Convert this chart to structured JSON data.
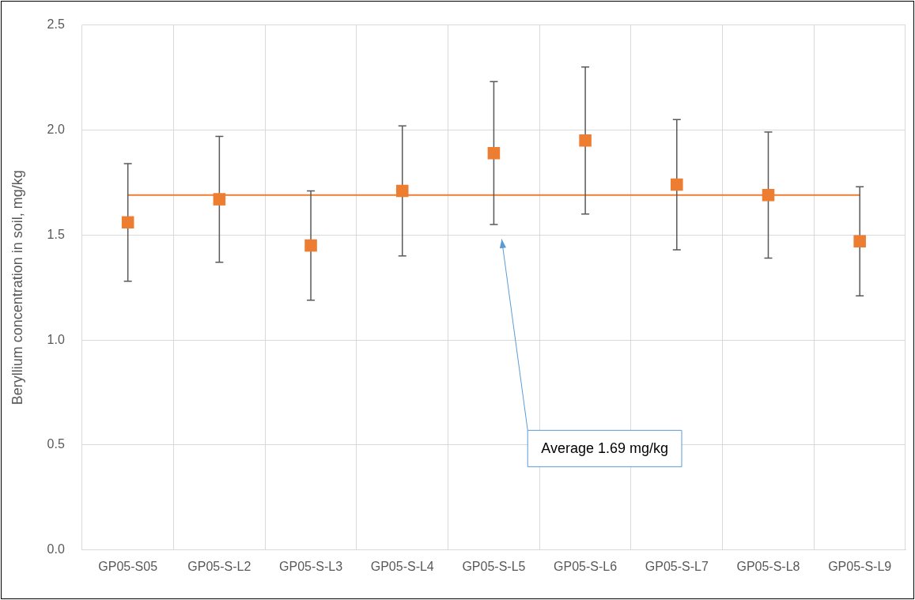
{
  "chart_data": {
    "type": "scatter",
    "ylabel": "Beryllium concentration in soil, mg/kg",
    "categories": [
      "GP05-S05",
      "GP05-S-L2",
      "GP05-S-L3",
      "GP05-S-L4",
      "GP05-S-L5",
      "GP05-S-L6",
      "GP05-S-L7",
      "GP05-S-L8",
      "GP05-S-L9"
    ],
    "values": [
      1.56,
      1.67,
      1.45,
      1.71,
      1.89,
      1.95,
      1.74,
      1.69,
      1.47
    ],
    "errors": [
      [
        1.28,
        1.84
      ],
      [
        1.37,
        1.97
      ],
      [
        1.19,
        1.71
      ],
      [
        1.4,
        2.02
      ],
      [
        1.55,
        2.23
      ],
      [
        1.6,
        2.3
      ],
      [
        1.43,
        2.05
      ],
      [
        1.39,
        1.99
      ],
      [
        1.21,
        1.73
      ]
    ],
    "color": "#ed7d31",
    "marker": "square",
    "ylim": [
      0,
      2.5
    ],
    "yticks": [
      {
        "value": 0,
        "label": "0.0"
      },
      {
        "value": 0.5,
        "label": "0.5"
      },
      {
        "value": 1,
        "label": "1.0"
      },
      {
        "value": 1.5,
        "label": "1.5"
      },
      {
        "value": 2,
        "label": "2.0"
      },
      {
        "value": 2.5,
        "label": "2.5"
      }
    ],
    "grid": true,
    "ref_lines": [
      {
        "axis": "y",
        "value": 1.69,
        "color": "#ed7d31"
      }
    ],
    "annotations": [
      "Average 1.69 mg/kg"
    ]
  }
}
